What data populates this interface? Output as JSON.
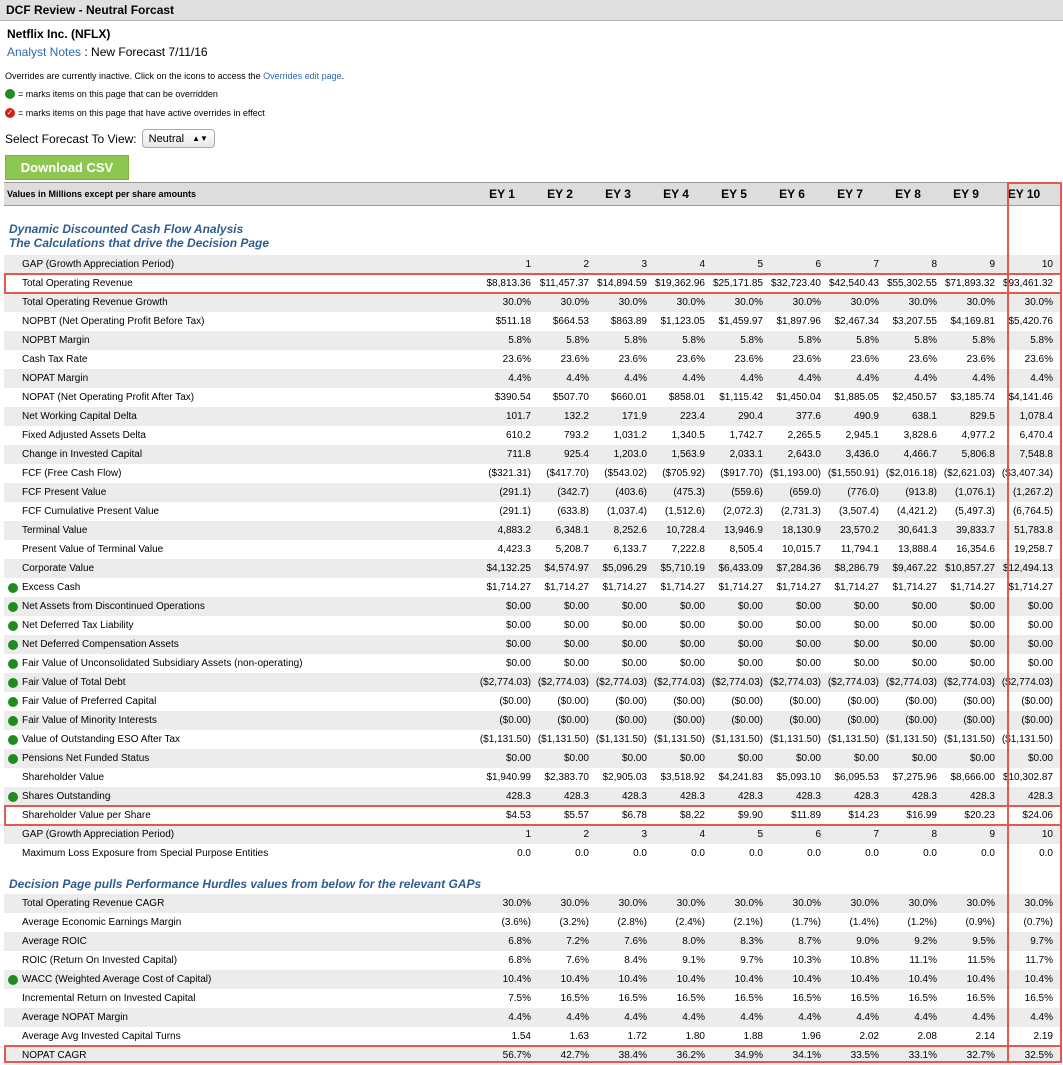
{
  "window_title": "DCF Review - Neutral Forcast",
  "company": "Netflix Inc. (NFLX)",
  "notes_link": "Analyst Notes",
  "notes_text": " : New Forecast 7/11/16",
  "overrides_text": "Overrides are currently inactive. Click on the icons to access the ",
  "overrides_link": "Overrides edit page",
  "overrides_end": ".",
  "legend_green": "= marks items on this page that can be overridden",
  "legend_red": "= marks items on this page that have active overrides in effect",
  "select_label": "Select Forecast To View:",
  "select_value": "Neutral",
  "csv_button": "Download CSV",
  "table_header": "Values in Millions except per share amounts",
  "years": [
    "EY 1",
    "EY 2",
    "EY 3",
    "EY 4",
    "EY 5",
    "EY 6",
    "EY 7",
    "EY 8",
    "EY 9",
    "EY 10"
  ],
  "section1_line1": "Dynamic Discounted Cash Flow Analysis",
  "section1_line2": "The Calculations that drive the Decision Page",
  "section2": "Decision Page pulls Performance Hurdles values from below for the relevant GAPs",
  "rows1": [
    {
      "label": "GAP (Growth Appreciation Period)",
      "dot": false,
      "v": [
        "1",
        "2",
        "3",
        "4",
        "5",
        "6",
        "7",
        "8",
        "9",
        "10"
      ]
    },
    {
      "label": "Total Operating Revenue",
      "dot": false,
      "v": [
        "$8,813.36",
        "$11,457.37",
        "$14,894.59",
        "$19,362.96",
        "$25,171.85",
        "$32,723.40",
        "$42,540.43",
        "$55,302.55",
        "$71,893.32",
        "$93,461.32"
      ]
    },
    {
      "label": "Total Operating Revenue Growth",
      "dot": false,
      "v": [
        "30.0%",
        "30.0%",
        "30.0%",
        "30.0%",
        "30.0%",
        "30.0%",
        "30.0%",
        "30.0%",
        "30.0%",
        "30.0%"
      ]
    },
    {
      "label": "NOPBT (Net Operating Profit Before Tax)",
      "dot": false,
      "v": [
        "$511.18",
        "$664.53",
        "$863.89",
        "$1,123.05",
        "$1,459.97",
        "$1,897.96",
        "$2,467.34",
        "$3,207.55",
        "$4,169.81",
        "$5,420.76"
      ]
    },
    {
      "label": "NOPBT Margin",
      "dot": false,
      "v": [
        "5.8%",
        "5.8%",
        "5.8%",
        "5.8%",
        "5.8%",
        "5.8%",
        "5.8%",
        "5.8%",
        "5.8%",
        "5.8%"
      ]
    },
    {
      "label": "Cash Tax Rate",
      "dot": false,
      "v": [
        "23.6%",
        "23.6%",
        "23.6%",
        "23.6%",
        "23.6%",
        "23.6%",
        "23.6%",
        "23.6%",
        "23.6%",
        "23.6%"
      ]
    },
    {
      "label": "NOPAT Margin",
      "dot": false,
      "v": [
        "4.4%",
        "4.4%",
        "4.4%",
        "4.4%",
        "4.4%",
        "4.4%",
        "4.4%",
        "4.4%",
        "4.4%",
        "4.4%"
      ]
    },
    {
      "label": "NOPAT (Net Operating Profit After Tax)",
      "dot": false,
      "v": [
        "$390.54",
        "$507.70",
        "$660.01",
        "$858.01",
        "$1,115.42",
        "$1,450.04",
        "$1,885.05",
        "$2,450.57",
        "$3,185.74",
        "$4,141.46"
      ]
    },
    {
      "label": "Net Working Capital Delta",
      "dot": false,
      "v": [
        "101.7",
        "132.2",
        "171.9",
        "223.4",
        "290.4",
        "377.6",
        "490.9",
        "638.1",
        "829.5",
        "1,078.4"
      ]
    },
    {
      "label": "Fixed Adjusted Assets Delta",
      "dot": false,
      "v": [
        "610.2",
        "793.2",
        "1,031.2",
        "1,340.5",
        "1,742.7",
        "2,265.5",
        "2,945.1",
        "3,828.6",
        "4,977.2",
        "6,470.4"
      ]
    },
    {
      "label": "Change in Invested Capital",
      "dot": false,
      "v": [
        "711.8",
        "925.4",
        "1,203.0",
        "1,563.9",
        "2,033.1",
        "2,643.0",
        "3,436.0",
        "4,466.7",
        "5,806.8",
        "7,548.8"
      ]
    },
    {
      "label": "FCF (Free Cash Flow)",
      "dot": false,
      "v": [
        "($321.31)",
        "($417.70)",
        "($543.02)",
        "($705.92)",
        "($917.70)",
        "($1,193.00)",
        "($1,550.91)",
        "($2,016.18)",
        "($2,621.03)",
        "($3,407.34)"
      ]
    },
    {
      "label": "FCF Present Value",
      "dot": false,
      "v": [
        "(291.1)",
        "(342.7)",
        "(403.6)",
        "(475.3)",
        "(559.6)",
        "(659.0)",
        "(776.0)",
        "(913.8)",
        "(1,076.1)",
        "(1,267.2)"
      ]
    },
    {
      "label": "FCF Cumulative Present Value",
      "dot": false,
      "v": [
        "(291.1)",
        "(633.8)",
        "(1,037.4)",
        "(1,512.6)",
        "(2,072.3)",
        "(2,731.3)",
        "(3,507.4)",
        "(4,421.2)",
        "(5,497.3)",
        "(6,764.5)"
      ]
    },
    {
      "label": "Terminal Value",
      "dot": false,
      "v": [
        "4,883.2",
        "6,348.1",
        "8,252.6",
        "10,728.4",
        "13,946.9",
        "18,130.9",
        "23,570.2",
        "30,641.3",
        "39,833.7",
        "51,783.8"
      ]
    },
    {
      "label": "Present Value of Terminal Value",
      "dot": false,
      "v": [
        "4,423.3",
        "5,208.7",
        "6,133.7",
        "7,222.8",
        "8,505.4",
        "10,015.7",
        "11,794.1",
        "13,888.4",
        "16,354.6",
        "19,258.7"
      ]
    },
    {
      "label": "Corporate Value",
      "dot": false,
      "v": [
        "$4,132.25",
        "$4,574.97",
        "$5,096.29",
        "$5,710.19",
        "$6,433.09",
        "$7,284.36",
        "$8,286.79",
        "$9,467.22",
        "$10,857.27",
        "$12,494.13"
      ]
    },
    {
      "label": "Excess Cash",
      "dot": true,
      "v": [
        "$1,714.27",
        "$1,714.27",
        "$1,714.27",
        "$1,714.27",
        "$1,714.27",
        "$1,714.27",
        "$1,714.27",
        "$1,714.27",
        "$1,714.27",
        "$1,714.27"
      ]
    },
    {
      "label": "Net Assets from Discontinued Operations",
      "dot": true,
      "v": [
        "$0.00",
        "$0.00",
        "$0.00",
        "$0.00",
        "$0.00",
        "$0.00",
        "$0.00",
        "$0.00",
        "$0.00",
        "$0.00"
      ]
    },
    {
      "label": "Net Deferred Tax Liability",
      "dot": true,
      "v": [
        "$0.00",
        "$0.00",
        "$0.00",
        "$0.00",
        "$0.00",
        "$0.00",
        "$0.00",
        "$0.00",
        "$0.00",
        "$0.00"
      ]
    },
    {
      "label": "Net Deferred Compensation Assets",
      "dot": true,
      "v": [
        "$0.00",
        "$0.00",
        "$0.00",
        "$0.00",
        "$0.00",
        "$0.00",
        "$0.00",
        "$0.00",
        "$0.00",
        "$0.00"
      ]
    },
    {
      "label": "Fair Value of Unconsolidated Subsidiary Assets (non-operating)",
      "dot": true,
      "v": [
        "$0.00",
        "$0.00",
        "$0.00",
        "$0.00",
        "$0.00",
        "$0.00",
        "$0.00",
        "$0.00",
        "$0.00",
        "$0.00"
      ]
    },
    {
      "label": "Fair Value of Total Debt",
      "dot": true,
      "v": [
        "($2,774.03)",
        "($2,774.03)",
        "($2,774.03)",
        "($2,774.03)",
        "($2,774.03)",
        "($2,774.03)",
        "($2,774.03)",
        "($2,774.03)",
        "($2,774.03)",
        "($2,774.03)"
      ]
    },
    {
      "label": "Fair Value of Preferred Capital",
      "dot": true,
      "v": [
        "($0.00)",
        "($0.00)",
        "($0.00)",
        "($0.00)",
        "($0.00)",
        "($0.00)",
        "($0.00)",
        "($0.00)",
        "($0.00)",
        "($0.00)"
      ]
    },
    {
      "label": "Fair Value of Minority Interests",
      "dot": true,
      "v": [
        "($0.00)",
        "($0.00)",
        "($0.00)",
        "($0.00)",
        "($0.00)",
        "($0.00)",
        "($0.00)",
        "($0.00)",
        "($0.00)",
        "($0.00)"
      ]
    },
    {
      "label": "Value of Outstanding ESO After Tax",
      "dot": true,
      "v": [
        "($1,131.50)",
        "($1,131.50)",
        "($1,131.50)",
        "($1,131.50)",
        "($1,131.50)",
        "($1,131.50)",
        "($1,131.50)",
        "($1,131.50)",
        "($1,131.50)",
        "($1,131.50)"
      ]
    },
    {
      "label": "Pensions Net Funded Status",
      "dot": true,
      "v": [
        "$0.00",
        "$0.00",
        "$0.00",
        "$0.00",
        "$0.00",
        "$0.00",
        "$0.00",
        "$0.00",
        "$0.00",
        "$0.00"
      ]
    },
    {
      "label": "Shareholder Value",
      "dot": false,
      "v": [
        "$1,940.99",
        "$2,383.70",
        "$2,905.03",
        "$3,518.92",
        "$4,241.83",
        "$5,093.10",
        "$6,095.53",
        "$7,275.96",
        "$8,666.00",
        "$10,302.87"
      ]
    },
    {
      "label": "Shares Outstanding",
      "dot": true,
      "v": [
        "428.3",
        "428.3",
        "428.3",
        "428.3",
        "428.3",
        "428.3",
        "428.3",
        "428.3",
        "428.3",
        "428.3"
      ]
    },
    {
      "label": "Shareholder Value per Share",
      "dot": false,
      "v": [
        "$4.53",
        "$5.57",
        "$6.78",
        "$8.22",
        "$9.90",
        "$11.89",
        "$14.23",
        "$16.99",
        "$20.23",
        "$24.06"
      ]
    },
    {
      "label": "GAP (Growth Appreciation Period)",
      "dot": false,
      "v": [
        "1",
        "2",
        "3",
        "4",
        "5",
        "6",
        "7",
        "8",
        "9",
        "10"
      ]
    },
    {
      "label": "Maximum Loss Exposure from Special Purpose Entities",
      "dot": false,
      "v": [
        "0.0",
        "0.0",
        "0.0",
        "0.0",
        "0.0",
        "0.0",
        "0.0",
        "0.0",
        "0.0",
        "0.0"
      ]
    }
  ],
  "rows2": [
    {
      "label": "Total Operating Revenue CAGR",
      "dot": false,
      "v": [
        "30.0%",
        "30.0%",
        "30.0%",
        "30.0%",
        "30.0%",
        "30.0%",
        "30.0%",
        "30.0%",
        "30.0%",
        "30.0%"
      ]
    },
    {
      "label": "Average Economic Earnings Margin",
      "dot": false,
      "v": [
        "(3.6%)",
        "(3.2%)",
        "(2.8%)",
        "(2.4%)",
        "(2.1%)",
        "(1.7%)",
        "(1.4%)",
        "(1.2%)",
        "(0.9%)",
        "(0.7%)"
      ]
    },
    {
      "label": "Average ROIC",
      "dot": false,
      "v": [
        "6.8%",
        "7.2%",
        "7.6%",
        "8.0%",
        "8.3%",
        "8.7%",
        "9.0%",
        "9.2%",
        "9.5%",
        "9.7%"
      ]
    },
    {
      "label": "ROIC (Return On Invested Capital)",
      "dot": false,
      "v": [
        "6.8%",
        "7.6%",
        "8.4%",
        "9.1%",
        "9.7%",
        "10.3%",
        "10.8%",
        "11.1%",
        "11.5%",
        "11.7%"
      ]
    },
    {
      "label": "WACC (Weighted Average Cost of Capital)",
      "dot": true,
      "v": [
        "10.4%",
        "10.4%",
        "10.4%",
        "10.4%",
        "10.4%",
        "10.4%",
        "10.4%",
        "10.4%",
        "10.4%",
        "10.4%"
      ]
    },
    {
      "label": "Incremental Return on Invested Capital",
      "dot": false,
      "v": [
        "7.5%",
        "16.5%",
        "16.5%",
        "16.5%",
        "16.5%",
        "16.5%",
        "16.5%",
        "16.5%",
        "16.5%",
        "16.5%"
      ]
    },
    {
      "label": "Average NOPAT Margin",
      "dot": false,
      "v": [
        "4.4%",
        "4.4%",
        "4.4%",
        "4.4%",
        "4.4%",
        "4.4%",
        "4.4%",
        "4.4%",
        "4.4%",
        "4.4%"
      ]
    },
    {
      "label": "Average Avg Invested Capital Turns",
      "dot": false,
      "v": [
        "1.54",
        "1.63",
        "1.72",
        "1.80",
        "1.88",
        "1.96",
        "2.02",
        "2.08",
        "2.14",
        "2.19"
      ]
    },
    {
      "label": "NOPAT CAGR",
      "dot": false,
      "v": [
        "56.7%",
        "42.7%",
        "38.4%",
        "36.2%",
        "34.9%",
        "34.1%",
        "33.5%",
        "33.1%",
        "32.7%",
        "32.5%"
      ]
    }
  ]
}
